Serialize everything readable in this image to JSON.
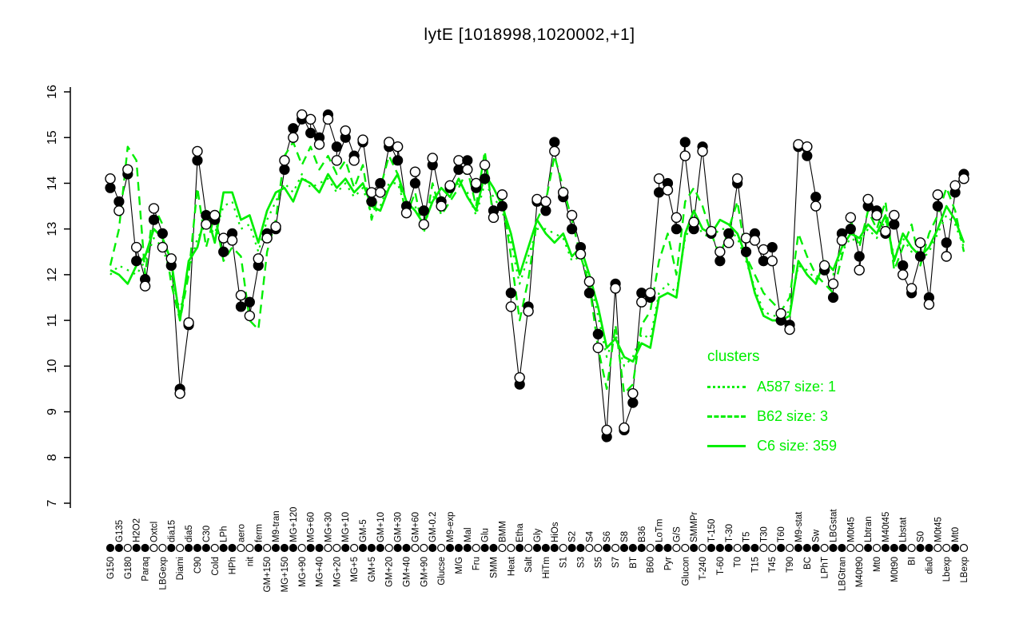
{
  "title": "lytE [1018998,1020002,+1]",
  "colors": {
    "cluster_green": "#00ee00",
    "series_black": "#000000",
    "background": "#ffffff"
  },
  "legend": {
    "title": "clusters",
    "items": [
      {
        "label": "A587 size: 1",
        "style": "dotted"
      },
      {
        "label": "B62 size: 3",
        "style": "dashed"
      },
      {
        "label": "C6 size: 359",
        "style": "solid"
      }
    ]
  },
  "chart_data": {
    "type": "line",
    "title": "lytE [1018998,1020002,+1]",
    "xlabel": "",
    "ylabel": "",
    "ylim": [
      7,
      16
    ],
    "yticks": [
      7,
      8,
      9,
      10,
      11,
      12,
      13,
      14,
      15,
      16
    ],
    "grid": false,
    "legend_position": "right-center",
    "categories": [
      "G150",
      "G135",
      "G180",
      "H2O2",
      "Paraq",
      "Oxtcl",
      "LBGexp",
      "dia15",
      "Diami",
      "dia5",
      "C90",
      "C30",
      "Cold",
      "LPh",
      "HPh",
      "aero",
      "nit",
      "ferm",
      "GM+150",
      "M9-tran",
      "MG+150",
      "MG+120",
      "MG+90",
      "MG+60",
      "MG+40",
      "MG+30",
      "MG+20",
      "MG+10",
      "MG+5",
      "GM-5",
      "GM+5",
      "GM+10",
      "GM+20",
      "GM+30",
      "GM+40",
      "GM+60",
      "GM+90",
      "GM-0.2",
      "Glucse",
      "M9-exp",
      "M/G",
      "Mal",
      "Fru",
      "Glu",
      "SMM",
      "BMM",
      "Heat",
      "Etha",
      "Salt",
      "Gly",
      "HiTm",
      "HiOs",
      "S1",
      "S2",
      "S3",
      "S4",
      "S5",
      "S6",
      "S7",
      "S8",
      "BT",
      "B36",
      "B60",
      "LoTm",
      "Pyr",
      "G/S",
      "Glucon",
      "SMMPr",
      "T-240",
      "T-150",
      "T-60",
      "T-30",
      "T0",
      "T5",
      "T15",
      "T30",
      "T45",
      "T60",
      "T90",
      "M9-stat",
      "BC",
      "Sw",
      "LPhT",
      "LBGstat",
      "LBGtran",
      "M0t45",
      "M40t90",
      "Lbtran",
      "Mt0",
      "M40t45",
      "M0t90",
      "Lbstat",
      "BI",
      "S0",
      "dia0",
      "M0t45",
      "Lbexp",
      "Mt0",
      "LBexp"
    ],
    "axis_marker_pattern": "ffoffoofof",
    "series": [
      {
        "name": "lytE replicate 1",
        "marker": "filled-circle",
        "color": "#000000",
        "values": [
          13.9,
          13.6,
          14.2,
          12.3,
          11.9,
          13.2,
          12.9,
          12.2,
          9.5,
          10.9,
          14.5,
          13.3,
          13.2,
          12.5,
          12.9,
          11.3,
          11.4,
          12.2,
          12.9,
          13.0,
          14.3,
          15.2,
          15.4,
          15.1,
          15.0,
          15.5,
          14.8,
          15.0,
          14.6,
          14.9,
          13.6,
          14.0,
          14.8,
          14.5,
          13.5,
          14.0,
          13.4,
          14.4,
          13.6,
          13.9,
          14.3,
          14.5,
          13.9,
          14.1,
          13.4,
          13.5,
          11.6,
          9.6,
          11.3,
          13.6,
          13.4,
          14.9,
          13.7,
          13.0,
          12.6,
          11.6,
          10.7,
          8.45,
          11.8,
          8.6,
          9.2,
          11.6,
          11.5,
          13.8,
          14.0,
          13.0,
          14.9,
          13.0,
          14.8,
          12.9,
          12.3,
          12.9,
          14.0,
          12.5,
          12.9,
          12.3,
          12.6,
          11.0,
          10.9,
          14.8,
          14.6,
          13.7,
          12.1,
          11.5,
          12.9,
          13.0,
          12.4,
          13.5,
          13.4,
          12.9,
          13.1,
          12.2,
          11.6,
          12.4,
          11.5,
          13.5,
          12.7,
          13.8,
          14.2
        ]
      },
      {
        "name": "lytE replicate 2",
        "marker": "open-circle",
        "color": "#000000",
        "values": [
          14.1,
          13.4,
          14.3,
          12.6,
          11.75,
          13.45,
          12.6,
          12.35,
          9.4,
          10.95,
          14.7,
          13.1,
          13.3,
          12.8,
          12.75,
          11.55,
          11.1,
          12.35,
          12.8,
          13.05,
          14.5,
          15.0,
          15.5,
          15.4,
          14.85,
          15.4,
          14.5,
          15.15,
          14.5,
          14.95,
          13.8,
          13.8,
          14.9,
          14.8,
          13.35,
          14.25,
          13.1,
          14.55,
          13.5,
          13.95,
          14.5,
          14.3,
          14.0,
          14.4,
          13.25,
          13.75,
          11.3,
          9.75,
          11.2,
          13.65,
          13.6,
          14.7,
          13.8,
          13.3,
          12.45,
          11.85,
          10.4,
          8.6,
          11.7,
          8.65,
          9.4,
          11.4,
          11.6,
          14.1,
          13.85,
          13.25,
          14.6,
          13.15,
          14.7,
          12.95,
          12.5,
          12.7,
          14.1,
          12.8,
          12.75,
          12.55,
          12.3,
          11.15,
          10.8,
          14.85,
          14.8,
          13.5,
          12.2,
          11.8,
          12.75,
          13.25,
          12.1,
          13.65,
          13.3,
          12.95,
          13.3,
          12.0,
          11.7,
          12.7,
          11.35,
          13.75,
          12.4,
          13.95,
          14.1
        ]
      },
      {
        "name": "A587",
        "style": "dotted",
        "color": "#00ee00",
        "values": [
          12.0,
          12.2,
          12.1,
          12.0,
          12.3,
          12.8,
          12.6,
          12.0,
          11.2,
          12.1,
          12.8,
          13.1,
          12.9,
          13.5,
          13.6,
          13.0,
          13.1,
          12.5,
          13.2,
          13.6,
          14.0,
          13.8,
          14.2,
          13.9,
          14.0,
          14.1,
          13.8,
          14.0,
          13.7,
          13.9,
          13.3,
          13.5,
          14.0,
          14.0,
          13.4,
          13.5,
          13.0,
          13.7,
          13.7,
          13.8,
          14.0,
          13.8,
          13.3,
          14.0,
          13.7,
          13.4,
          12.7,
          11.8,
          12.4,
          13.0,
          13.0,
          12.9,
          12.8,
          12.3,
          12.4,
          11.9,
          11.1,
          10.2,
          10.7,
          10.0,
          10.2,
          10.7,
          10.6,
          11.6,
          11.8,
          11.6,
          12.8,
          13.2,
          12.9,
          12.8,
          13.0,
          13.0,
          12.8,
          12.3,
          11.7,
          11.2,
          11.1,
          11.1,
          11.2,
          12.2,
          12.1,
          11.9,
          12.2,
          12.0,
          12.5,
          12.8,
          12.7,
          13.0,
          12.8,
          13.2,
          12.4,
          12.8,
          12.5,
          12.3,
          12.5,
          12.9,
          13.3,
          13.1,
          12.6
        ]
      },
      {
        "name": "B62",
        "style": "dashed",
        "color": "#00ee00",
        "values": [
          12.2,
          13.0,
          14.8,
          14.5,
          12.0,
          13.5,
          13.1,
          11.8,
          11.0,
          12.0,
          13.9,
          12.6,
          13.3,
          12.3,
          12.6,
          12.4,
          11.0,
          10.8,
          12.5,
          13.2,
          14.6,
          14.9,
          14.4,
          14.8,
          14.3,
          14.6,
          14.2,
          14.5,
          13.9,
          14.4,
          13.2,
          13.9,
          14.6,
          14.2,
          13.3,
          13.8,
          12.9,
          14.0,
          13.3,
          13.6,
          13.9,
          14.3,
          13.5,
          14.7,
          13.2,
          13.7,
          12.4,
          11.0,
          11.9,
          13.2,
          13.6,
          14.6,
          13.9,
          13.2,
          12.4,
          11.8,
          10.4,
          9.5,
          10.9,
          9.4,
          9.6,
          10.9,
          11.2,
          12.3,
          12.9,
          12.0,
          13.6,
          13.9,
          13.5,
          12.9,
          12.4,
          13.0,
          13.6,
          12.4,
          12.0,
          11.6,
          11.4,
          11.2,
          11.5,
          12.9,
          12.4,
          12.0,
          11.8,
          11.6,
          12.4,
          13.2,
          12.6,
          13.4,
          13.0,
          13.6,
          12.1,
          12.6,
          13.1,
          12.2,
          12.9,
          13.3,
          13.9,
          13.4,
          12.5
        ]
      },
      {
        "name": "C6",
        "style": "solid",
        "color": "#00ee00",
        "values": [
          12.1,
          12.0,
          11.8,
          12.2,
          12.4,
          13.0,
          12.8,
          12.3,
          11.0,
          12.3,
          12.6,
          13.4,
          12.7,
          13.8,
          13.8,
          13.2,
          13.3,
          12.7,
          13.4,
          13.8,
          13.9,
          13.6,
          14.1,
          14.0,
          13.8,
          14.2,
          13.9,
          14.1,
          13.8,
          14.0,
          13.5,
          13.4,
          13.9,
          14.2,
          13.6,
          13.4,
          13.1,
          13.6,
          13.9,
          13.7,
          14.1,
          13.7,
          13.4,
          14.2,
          13.9,
          13.5,
          12.9,
          12.0,
          12.6,
          13.2,
          12.9,
          12.7,
          12.9,
          12.4,
          12.6,
          12.0,
          11.3,
          10.4,
          10.6,
          10.2,
          10.1,
          10.5,
          10.4,
          11.5,
          11.6,
          11.5,
          12.9,
          13.4,
          13.0,
          12.9,
          13.2,
          13.1,
          12.9,
          12.4,
          11.6,
          11.1,
          11.0,
          11.0,
          11.1,
          12.3,
          12.0,
          11.8,
          12.3,
          12.1,
          12.6,
          12.9,
          12.8,
          13.1,
          12.9,
          13.3,
          12.3,
          12.9,
          12.6,
          12.4,
          12.6,
          13.0,
          13.5,
          13.2,
          12.7
        ]
      }
    ]
  }
}
